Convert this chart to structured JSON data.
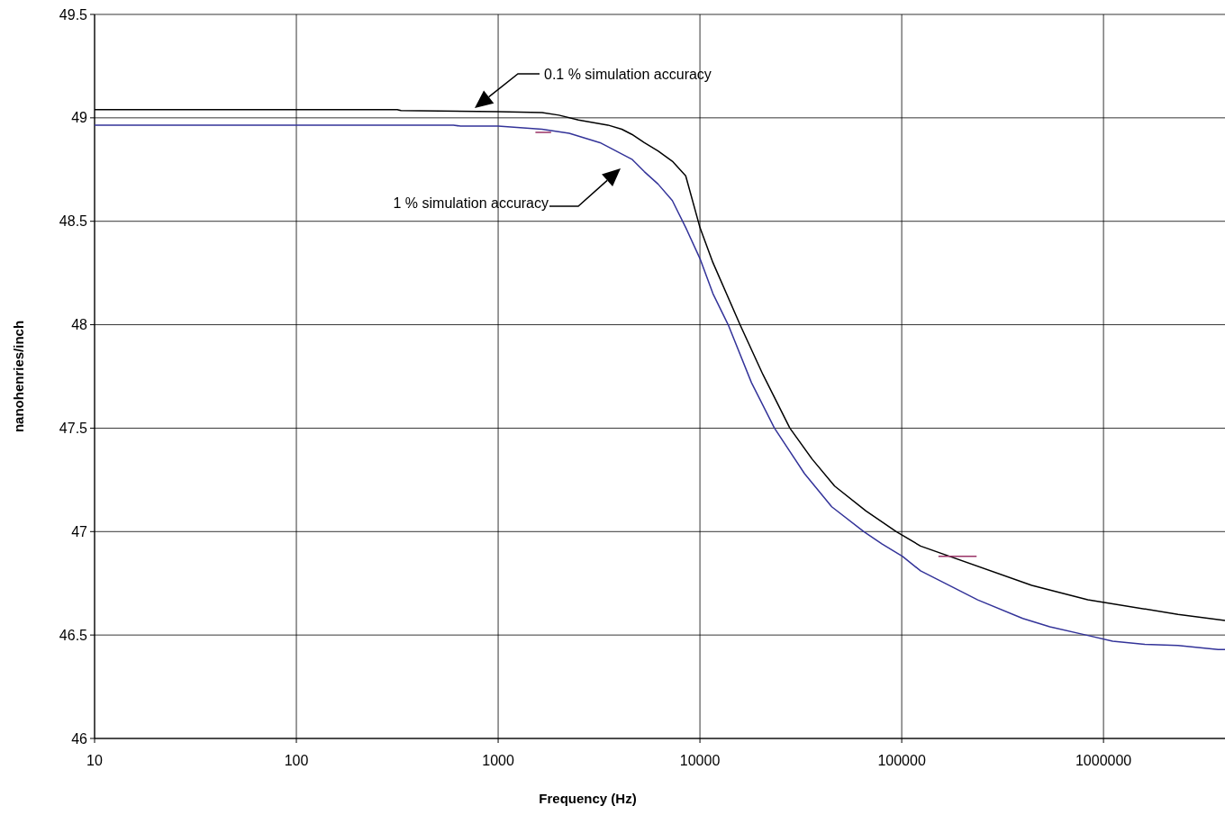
{
  "chart_data": {
    "type": "line",
    "xlabel": "Frequency (Hz)",
    "ylabel": "nanohenries/inch",
    "log": "x",
    "xlim": [
      10,
      4000000
    ],
    "xticks": [
      10,
      100,
      1000,
      10000,
      100000,
      1000000
    ],
    "ylim": [
      46,
      49.5
    ],
    "yticks": [
      46,
      46.5,
      47,
      47.5,
      48,
      48.5,
      49,
      49.5
    ],
    "grid": true,
    "marker": "none",
    "line_style": "solid",
    "series": [
      {
        "color": "#000000",
        "x": [
          10,
          316,
          330,
          1000,
          1650,
          2000,
          2500,
          3500,
          4100,
          4600,
          5300,
          6200,
          7300,
          8500,
          10000,
          11600,
          15800,
          20500,
          27900,
          36000,
          46500,
          66500,
          94000,
          124000,
          441000,
          836000,
          2340000,
          4000000
        ],
        "values": [
          49.04,
          49.04,
          49.035,
          49.03,
          49.025,
          49.013,
          48.99,
          48.965,
          48.945,
          48.92,
          48.88,
          48.84,
          48.79,
          48.72,
          48.47,
          48.3,
          48.0,
          47.76,
          47.5,
          47.35,
          47.22,
          47.1,
          47.0,
          46.93,
          46.74,
          46.67,
          46.6,
          46.57
        ]
      },
      {
        "color": "#333399",
        "x": [
          10,
          600,
          650,
          1000,
          1650,
          2250,
          3200,
          4600,
          5300,
          6200,
          7300,
          8500,
          10000,
          11600,
          13800,
          18000,
          23400,
          33000,
          45000,
          64900,
          80000,
          101000,
          124000,
          238000,
          398000,
          542000,
          818000,
          1110000,
          1600000,
          2340000,
          3700000,
          4000000
        ],
        "values": [
          48.965,
          48.965,
          48.96,
          48.96,
          48.945,
          48.925,
          48.88,
          48.8,
          48.74,
          48.68,
          48.6,
          48.47,
          48.32,
          48.15,
          48.0,
          47.72,
          47.5,
          47.28,
          47.12,
          47.0,
          46.94,
          46.88,
          46.81,
          46.67,
          46.58,
          46.54,
          46.5,
          46.47,
          46.455,
          46.45,
          46.43,
          46.43
        ]
      },
      {
        "color": "#993366",
        "x": [
          1530,
          1830,
          20000,
          152000,
          235000
        ],
        "values": [
          48.93,
          48.93,
          null,
          46.88,
          46.88
        ]
      }
    ],
    "annotations": [
      "0.1 % simulation accuracy",
      "1 % simulation accuracy"
    ]
  }
}
